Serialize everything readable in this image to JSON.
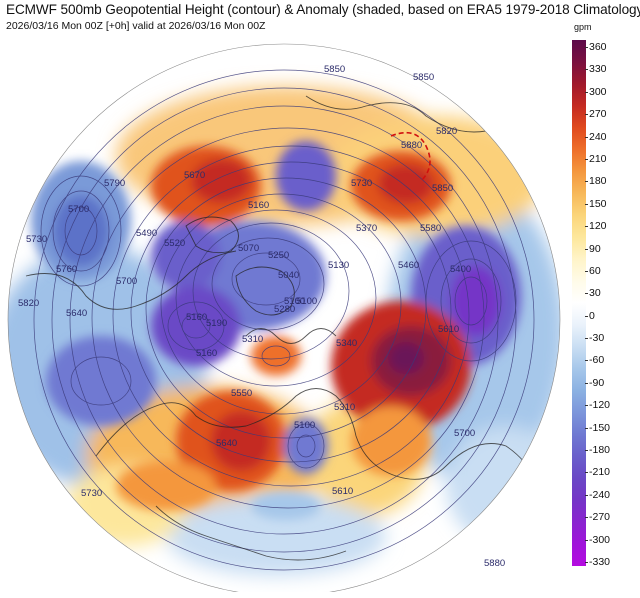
{
  "title": "ECMWF 500mb Geopotential Height (contour) & Anomaly (shaded, based on ERA5 1979-2018 Climatology)",
  "subtitle": "2026/03/16 Mon 00Z [+0h] valid at 2026/03/16 Mon 00Z",
  "colorbar": {
    "unit": "gpm",
    "ticks": [
      "360",
      "330",
      "300",
      "270",
      "240",
      "210",
      "180",
      "150",
      "120",
      "90",
      "60",
      "30",
      "0",
      "-30",
      "-60",
      "-90",
      "-120",
      "-150",
      "-180",
      "-210",
      "-240",
      "-270",
      "-300",
      "-330"
    ],
    "stops": [
      "#5c0a4a",
      "#7a1040",
      "#a0182c",
      "#c42a22",
      "#e04a1e",
      "#ee6f2a",
      "#f4973e",
      "#f7b85a",
      "#fbd57a",
      "#fde79c",
      "#fff4c8",
      "#fffbe8",
      "#ffffff",
      "#eaf2fb",
      "#c9def3",
      "#a6c7ea",
      "#8bb1e2",
      "#7c96db",
      "#6f79d2",
      "#6a5fcb",
      "#6a48c6",
      "#7535c7",
      "#8a24d0",
      "#a014da",
      "#b40ce0"
    ]
  },
  "contour_labels": [
    "5850",
    "5850",
    "5820",
    "5880",
    "5850",
    "5580",
    "5730",
    "5400",
    "5610",
    "5790",
    "5700",
    "5760",
    "5730",
    "5820",
    "5520",
    "5160",
    "5250",
    "5100",
    "5130",
    "5190",
    "5070",
    "5040",
    "5100",
    "5280",
    "5310",
    "5550",
    "5640",
    "5700",
    "5610",
    "5640",
    "5160",
    "5310",
    "5700",
    "5670",
    "5880",
    "5730",
    "5100",
    "5460",
    "5340",
    "5370",
    "5490",
    "5160"
  ],
  "map": {
    "projection": "polar-stereographic",
    "hemisphere": "northern",
    "features": [
      "height-contours",
      "anomaly-shading",
      "coastlines"
    ]
  }
}
